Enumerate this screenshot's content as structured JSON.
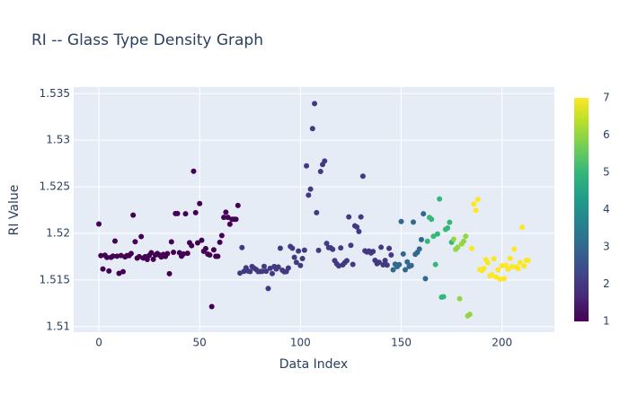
{
  "chart_data": {
    "type": "scatter",
    "title": "RI -- Glass Type Density Graph",
    "x_label": "Data Index",
    "y_label": "RI Value",
    "x": [
      0,
      1,
      2,
      3,
      4,
      5,
      6,
      7,
      8,
      9,
      10,
      11,
      12,
      13,
      14,
      15,
      16,
      17,
      18,
      19,
      20,
      21,
      22,
      23,
      24,
      25,
      26,
      27,
      28,
      29,
      30,
      31,
      32,
      33,
      34,
      35,
      36,
      37,
      38,
      39,
      40,
      41,
      42,
      43,
      44,
      45,
      46,
      47,
      48,
      49,
      50,
      51,
      52,
      53,
      54,
      55,
      56,
      57,
      58,
      59,
      60,
      61,
      62,
      63,
      64,
      65,
      66,
      67,
      68,
      69,
      70,
      71,
      72,
      73,
      74,
      75,
      76,
      77,
      78,
      79,
      80,
      81,
      82,
      83,
      84,
      85,
      86,
      87,
      88,
      89,
      90,
      91,
      92,
      93,
      94,
      95,
      96,
      97,
      98,
      99,
      100,
      101,
      102,
      103,
      104,
      105,
      106,
      107,
      108,
      109,
      110,
      111,
      112,
      113,
      114,
      115,
      116,
      117,
      118,
      119,
      120,
      121,
      122,
      123,
      124,
      125,
      126,
      127,
      128,
      129,
      130,
      131,
      132,
      133,
      134,
      135,
      136,
      137,
      138,
      139,
      140,
      141,
      142,
      143,
      144,
      145,
      146,
      147,
      148,
      149,
      150,
      151,
      152,
      153,
      154,
      155,
      156,
      157,
      158,
      159,
      160,
      161,
      162,
      163,
      164,
      165,
      166,
      167,
      168,
      169,
      170,
      171,
      172,
      173,
      174,
      175,
      176,
      177,
      178,
      179,
      180,
      181,
      182,
      183,
      184,
      185,
      186,
      187,
      188,
      189,
      190,
      191,
      192,
      193,
      194,
      195,
      196,
      197,
      198,
      199,
      200,
      201,
      202,
      203,
      204,
      205,
      206,
      207,
      208,
      209,
      210,
      211,
      212,
      213
    ],
    "values": [
      1.52101,
      1.51761,
      1.51618,
      1.51766,
      1.51742,
      1.51596,
      1.51743,
      1.51756,
      1.51918,
      1.51755,
      1.51571,
      1.51763,
      1.51589,
      1.51748,
      1.51763,
      1.51761,
      1.51784,
      1.52196,
      1.51911,
      1.51735,
      1.5175,
      1.51966,
      1.51736,
      1.51751,
      1.5172,
      1.51764,
      1.51793,
      1.51721,
      1.51768,
      1.51784,
      1.51768,
      1.51747,
      1.51775,
      1.51753,
      1.51783,
      1.51567,
      1.51909,
      1.51797,
      1.52213,
      1.52213,
      1.51793,
      1.51755,
      1.51779,
      1.5221,
      1.51786,
      1.519,
      1.51869,
      1.52667,
      1.52223,
      1.51898,
      1.5232,
      1.51926,
      1.51808,
      1.51837,
      1.51778,
      1.51769,
      1.51215,
      1.51824,
      1.51754,
      1.51754,
      1.51905,
      1.51977,
      1.52172,
      1.52227,
      1.52172,
      1.52099,
      1.52152,
      1.52152,
      1.52152,
      1.523,
      1.51574,
      1.51848,
      1.51593,
      1.51631,
      1.51596,
      1.5159,
      1.51645,
      1.51627,
      1.51613,
      1.5159,
      1.51592,
      1.51593,
      1.51646,
      1.51594,
      1.51409,
      1.51625,
      1.51569,
      1.51645,
      1.51618,
      1.5164,
      1.51841,
      1.51605,
      1.51588,
      1.5159,
      1.51629,
      1.5186,
      1.51841,
      1.51743,
      1.51689,
      1.51811,
      1.51655,
      1.5173,
      1.5182,
      1.52725,
      1.5241,
      1.52475,
      1.53125,
      1.53393,
      1.52222,
      1.51818,
      1.52664,
      1.52739,
      1.52777,
      1.51892,
      1.51847,
      1.51846,
      1.51829,
      1.51708,
      1.51673,
      1.51652,
      1.51844,
      1.51663,
      1.51687,
      1.51707,
      1.52177,
      1.51872,
      1.51667,
      1.52081,
      1.52068,
      1.5202,
      1.52177,
      1.52614,
      1.51813,
      1.518,
      1.51811,
      1.51789,
      1.51806,
      1.51711,
      1.51674,
      1.5169,
      1.51851,
      1.51662,
      1.51709,
      1.5166,
      1.51839,
      1.51769,
      1.5161,
      1.5167,
      1.51643,
      1.51665,
      1.52127,
      1.51779,
      1.5161,
      1.51694,
      1.51646,
      1.51655,
      1.52121,
      1.51776,
      1.51796,
      1.51832,
      1.51934,
      1.52211,
      1.51514,
      1.51915,
      1.52171,
      1.52151,
      1.51969,
      1.51666,
      1.51994,
      1.52369,
      1.51316,
      1.51321,
      1.52043,
      1.52058,
      1.52119,
      1.51905,
      1.51937,
      1.51829,
      1.51852,
      1.51299,
      1.51888,
      1.51916,
      1.51969,
      1.51115,
      1.51131,
      1.51838,
      1.52315,
      1.52247,
      1.52365,
      1.51613,
      1.51602,
      1.51623,
      1.51719,
      1.51683,
      1.51545,
      1.51556,
      1.51727,
      1.51531,
      1.51609,
      1.51508,
      1.51653,
      1.51514,
      1.51658,
      1.51617,
      1.51732,
      1.51645,
      1.51831,
      1.5164,
      1.51623,
      1.51685,
      1.52065,
      1.51651,
      1.51711,
      1.51711
    ],
    "color_values": [
      1,
      1,
      1,
      1,
      1,
      1,
      1,
      1,
      1,
      1,
      1,
      1,
      1,
      1,
      1,
      1,
      1,
      1,
      1,
      1,
      1,
      1,
      1,
      1,
      1,
      1,
      1,
      1,
      1,
      1,
      1,
      1,
      1,
      1,
      1,
      1,
      1,
      1,
      1,
      1,
      1,
      1,
      1,
      1,
      1,
      1,
      1,
      1,
      1,
      1,
      1,
      1,
      1,
      1,
      1,
      1,
      1,
      1,
      1,
      1,
      1,
      1,
      1,
      1,
      1,
      1,
      1,
      1,
      1,
      1,
      2,
      2,
      2,
      2,
      2,
      2,
      2,
      2,
      2,
      2,
      2,
      2,
      2,
      2,
      2,
      2,
      2,
      2,
      2,
      2,
      2,
      2,
      2,
      2,
      2,
      2,
      2,
      2,
      2,
      2,
      2,
      2,
      2,
      2,
      2,
      2,
      2,
      2,
      2,
      2,
      2,
      2,
      2,
      2,
      2,
      2,
      2,
      2,
      2,
      2,
      2,
      2,
      2,
      2,
      2,
      2,
      2,
      2,
      2,
      2,
      2,
      2,
      2,
      2,
      2,
      2,
      2,
      2,
      2,
      2,
      2,
      2,
      2,
      2,
      2,
      2,
      3,
      3,
      3,
      3,
      3,
      3,
      3,
      3,
      3,
      3,
      3,
      3,
      3,
      3,
      3,
      3,
      3,
      5,
      5,
      5,
      5,
      5,
      5,
      5,
      5,
      5,
      5,
      5,
      5,
      5,
      6,
      6,
      6,
      6,
      6,
      6,
      6,
      6,
      6,
      7,
      7,
      7,
      7,
      7,
      7,
      7,
      7,
      7,
      7,
      7,
      7,
      7,
      7,
      7,
      7,
      7,
      7,
      7,
      7,
      7,
      7,
      7,
      7,
      7,
      7,
      7,
      7,
      7
    ],
    "colorscale": "Viridis",
    "clim": [
      1,
      7
    ],
    "cticks": [
      1,
      2,
      3,
      4,
      5,
      6,
      7
    ],
    "xlim": [
      -12.5,
      226
    ],
    "xticks": [
      0,
      50,
      100,
      150,
      200
    ],
    "ylim": [
      1.5094,
      1.5357
    ],
    "yticks": [
      1.51,
      1.515,
      1.52,
      1.525,
      1.53,
      1.535
    ],
    "grid": true
  }
}
